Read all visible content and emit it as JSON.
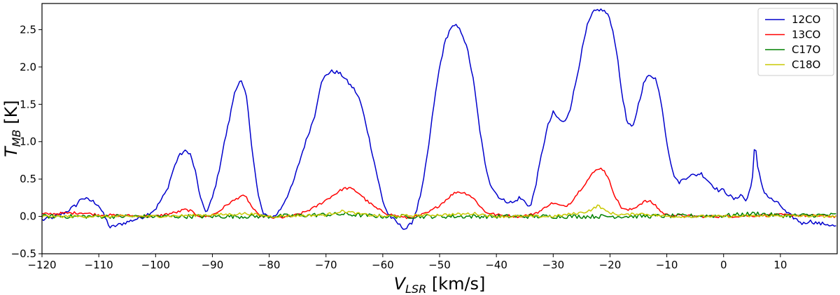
{
  "chart_data": {
    "type": "line",
    "title": "",
    "xlabel_main": "V",
    "xlabel_sub": "LSR",
    "xlabel_unit": " [km/s]",
    "ylabel_main": "T",
    "ylabel_sub": "MB",
    "ylabel_unit": " [K]",
    "xlim": [
      -120,
      20
    ],
    "ylim": [
      -0.5,
      2.85
    ],
    "x_ticks": [
      -120,
      -110,
      -100,
      -90,
      -80,
      -70,
      -60,
      -50,
      -40,
      -30,
      -20,
      -10,
      0,
      10
    ],
    "x_tick_labels": [
      "−120",
      "−110",
      "−100",
      "−90",
      "−80",
      "−70",
      "−60",
      "−50",
      "−40",
      "−30",
      "−20",
      "−10",
      "0",
      "10"
    ],
    "y_ticks": [
      -0.5,
      0.0,
      0.5,
      1.0,
      1.5,
      2.0,
      2.5
    ],
    "y_tick_labels": [
      "−0.5",
      "0.0",
      "0.5",
      "1.0",
      "1.5",
      "2.0",
      "2.5"
    ],
    "legend_position": "top-right",
    "series": [
      {
        "name": "12CO",
        "color": "#0000cc",
        "noise": 0.025,
        "x": [
          -120,
          -118,
          -116,
          -114,
          -113,
          -111,
          -110,
          -108,
          -106,
          -104,
          -102,
          -101,
          -100,
          -98,
          -97,
          -96,
          -95,
          -94,
          -93,
          -92,
          -91,
          -90,
          -89,
          -88,
          -87,
          -86,
          -85,
          -84,
          -83,
          -82,
          -81,
          -80,
          -79,
          -78,
          -76,
          -74,
          -72,
          -71,
          -70,
          -69,
          -68,
          -67,
          -66,
          -65,
          -64,
          -63,
          -62,
          -61,
          -60,
          -59,
          -58,
          -57,
          -56,
          -55,
          -54,
          -53,
          -52,
          -51,
          -50,
          -49,
          -48,
          -47,
          -46,
          -45,
          -44,
          -43,
          -42,
          -41,
          -40,
          -39,
          -38,
          -37,
          -36,
          -35,
          -34,
          -33,
          -32,
          -31,
          -30,
          -29,
          -28,
          -27,
          -26,
          -25,
          -24,
          -23,
          -22,
          -21,
          -20,
          -19,
          -18,
          -17,
          -16,
          -15,
          -14,
          -13,
          -12,
          -11,
          -10,
          -9,
          -8,
          -7,
          -6,
          -5,
          -4,
          -3,
          -2,
          -1,
          0,
          1,
          2,
          3,
          4,
          5,
          5.5,
          6,
          7,
          8,
          9,
          10,
          11,
          12,
          13,
          14,
          15,
          16,
          17,
          18,
          19,
          20
        ],
        "y": [
          -0.05,
          -0.01,
          0.05,
          0.15,
          0.25,
          0.2,
          0.15,
          -0.15,
          -0.1,
          -0.05,
          0.0,
          0.05,
          0.1,
          0.35,
          0.6,
          0.8,
          0.87,
          0.86,
          0.6,
          0.2,
          0.05,
          0.25,
          0.55,
          0.95,
          1.3,
          1.7,
          1.82,
          1.6,
          0.9,
          0.3,
          0.02,
          0.0,
          0.0,
          0.1,
          0.4,
          0.9,
          1.35,
          1.75,
          1.9,
          1.94,
          1.93,
          1.88,
          1.78,
          1.7,
          1.55,
          1.25,
          0.9,
          0.55,
          0.2,
          0.02,
          -0.05,
          -0.12,
          -0.17,
          -0.1,
          0.1,
          0.4,
          0.9,
          1.5,
          2.0,
          2.35,
          2.53,
          2.55,
          2.45,
          2.2,
          1.8,
          1.2,
          0.7,
          0.42,
          0.3,
          0.22,
          0.2,
          0.18,
          0.25,
          0.2,
          0.12,
          0.45,
          0.85,
          1.2,
          1.39,
          1.3,
          1.25,
          1.45,
          1.8,
          2.2,
          2.55,
          2.73,
          2.77,
          2.75,
          2.65,
          2.3,
          1.7,
          1.25,
          1.18,
          1.5,
          1.8,
          1.9,
          1.85,
          1.55,
          1.0,
          0.6,
          0.45,
          0.5,
          0.55,
          0.55,
          0.58,
          0.5,
          0.42,
          0.35,
          0.35,
          0.28,
          0.22,
          0.3,
          0.2,
          0.45,
          1.0,
          0.65,
          0.35,
          0.25,
          0.2,
          0.15,
          0.05,
          0.0,
          -0.05,
          -0.1,
          -0.06,
          -0.08,
          -0.1,
          -0.1,
          -0.12,
          -0.14
        ]
      },
      {
        "name": "13CO",
        "color": "#ff0000",
        "noise": 0.018,
        "x": [
          -120,
          -113,
          -110,
          -100,
          -98,
          -96,
          -95,
          -94,
          -93,
          -92,
          -91,
          -90,
          -89,
          -88,
          -87,
          -86,
          -85,
          -84,
          -83,
          -82,
          -81,
          -79,
          -76,
          -74,
          -72,
          -70,
          -68,
          -67,
          -66,
          -65,
          -64,
          -63,
          -61,
          -59,
          -56,
          -54,
          -52,
          -50,
          -48,
          -47,
          -46,
          -45,
          -44,
          -43,
          -42,
          -40,
          -36,
          -34,
          -32,
          -31,
          -30,
          -29,
          -28,
          -27,
          -26,
          -25,
          -24,
          -23,
          -22,
          -21,
          -20,
          -19,
          -18,
          -17,
          -16,
          -15,
          -14,
          -13,
          -12,
          -11,
          -10,
          -5,
          0,
          10,
          20
        ],
        "y": [
          0.03,
          0.05,
          0.02,
          0.0,
          0.03,
          0.06,
          0.09,
          0.08,
          0.03,
          0.0,
          0.0,
          0.02,
          0.06,
          0.12,
          0.18,
          0.22,
          0.28,
          0.25,
          0.12,
          0.02,
          0.0,
          -0.02,
          0.0,
          0.05,
          0.12,
          0.22,
          0.32,
          0.37,
          0.38,
          0.35,
          0.3,
          0.22,
          0.1,
          0.03,
          -0.02,
          0.0,
          0.05,
          0.15,
          0.28,
          0.33,
          0.32,
          0.3,
          0.24,
          0.15,
          0.06,
          0.02,
          0.0,
          0.02,
          0.08,
          0.15,
          0.18,
          0.15,
          0.13,
          0.18,
          0.28,
          0.38,
          0.48,
          0.58,
          0.65,
          0.62,
          0.45,
          0.25,
          0.12,
          0.08,
          0.1,
          0.15,
          0.2,
          0.2,
          0.15,
          0.06,
          0.02,
          0.0,
          0.0,
          0.02,
          0.0
        ]
      },
      {
        "name": "C17O",
        "color": "#008000",
        "noise": 0.028,
        "x": [
          -120,
          -100,
          -80,
          -67,
          -60,
          -40,
          -20,
          0,
          6,
          10,
          20
        ],
        "y": [
          0.0,
          0.0,
          0.0,
          0.03,
          0.0,
          0.0,
          0.0,
          0.01,
          0.04,
          0.01,
          0.02
        ]
      },
      {
        "name": "C18O",
        "color": "#c8c800",
        "noise": 0.018,
        "x": [
          -120,
          -100,
          -86,
          -84,
          -80,
          -70,
          -68,
          -67,
          -66,
          -64,
          -60,
          -46,
          -44,
          -40,
          -30,
          -27,
          -25,
          -24,
          -23,
          -22,
          -21,
          -20,
          -19,
          -17,
          -15,
          -10,
          0,
          10,
          20
        ],
        "y": [
          0.0,
          0.0,
          0.03,
          0.04,
          0.0,
          0.02,
          0.06,
          0.07,
          0.06,
          0.03,
          0.0,
          0.03,
          0.04,
          0.0,
          0.0,
          0.03,
          0.05,
          0.07,
          0.1,
          0.15,
          0.08,
          0.05,
          0.03,
          0.02,
          0.04,
          0.0,
          0.0,
          0.01,
          0.0
        ]
      }
    ]
  }
}
